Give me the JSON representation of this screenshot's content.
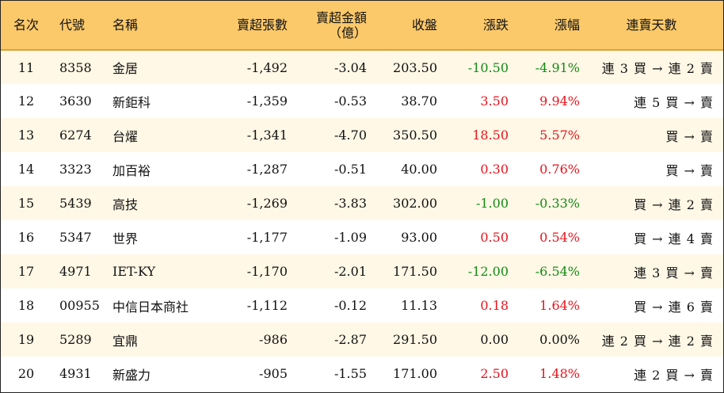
{
  "header": {
    "rank": "名次",
    "code": "代號",
    "name": "名稱",
    "lots": "賣超張數",
    "amount_line1": "賣超金額",
    "amount_line2": "（億）",
    "close": "收盤",
    "change": "漲跌",
    "pct": "漲幅",
    "days": "連賣天數"
  },
  "rows": [
    {
      "rank": "11",
      "code": "8358",
      "name": "金居",
      "lots": "-1,492",
      "amount": "-3.04",
      "close": "203.50",
      "change": "-10.50",
      "pct": "-4.91%",
      "days": "連 3 買 → 連 2 賣",
      "trend": "down"
    },
    {
      "rank": "12",
      "code": "3630",
      "name": "新鉅科",
      "lots": "-1,359",
      "amount": "-0.53",
      "close": "38.70",
      "change": "3.50",
      "pct": "9.94%",
      "days": "連 5 買 → 賣",
      "trend": "up"
    },
    {
      "rank": "13",
      "code": "6274",
      "name": "台燿",
      "lots": "-1,341",
      "amount": "-4.70",
      "close": "350.50",
      "change": "18.50",
      "pct": "5.57%",
      "days": "買 → 賣",
      "trend": "up"
    },
    {
      "rank": "14",
      "code": "3323",
      "name": "加百裕",
      "lots": "-1,287",
      "amount": "-0.51",
      "close": "40.00",
      "change": "0.30",
      "pct": "0.76%",
      "days": "買 → 賣",
      "trend": "up"
    },
    {
      "rank": "15",
      "code": "5439",
      "name": "高技",
      "lots": "-1,269",
      "amount": "-3.83",
      "close": "302.00",
      "change": "-1.00",
      "pct": "-0.33%",
      "days": "買 → 連 2 賣",
      "trend": "down"
    },
    {
      "rank": "16",
      "code": "5347",
      "name": "世界",
      "lots": "-1,177",
      "amount": "-1.09",
      "close": "93.00",
      "change": "0.50",
      "pct": "0.54%",
      "days": "買 → 連 4 賣",
      "trend": "up"
    },
    {
      "rank": "17",
      "code": "4971",
      "name": "IET-KY",
      "lots": "-1,170",
      "amount": "-2.01",
      "close": "171.50",
      "change": "-12.00",
      "pct": "-6.54%",
      "days": "連 3 買 → 賣",
      "trend": "down"
    },
    {
      "rank": "18",
      "code": "00955",
      "name": "中信日本商社",
      "lots": "-1,112",
      "amount": "-0.12",
      "close": "11.13",
      "change": "0.18",
      "pct": "1.64%",
      "days": "買 → 連 6 賣",
      "trend": "up"
    },
    {
      "rank": "19",
      "code": "5289",
      "name": "宜鼎",
      "lots": "-986",
      "amount": "-2.87",
      "close": "291.50",
      "change": "0.00",
      "pct": "0.00%",
      "days": "連 2 買 → 連 2 賣",
      "trend": "flat"
    },
    {
      "rank": "20",
      "code": "4931",
      "name": "新盛力",
      "lots": "-905",
      "amount": "-1.55",
      "close": "171.00",
      "change": "2.50",
      "pct": "1.48%",
      "days": "連 2 買 → 賣",
      "trend": "up"
    }
  ],
  "colors": {
    "up": "#e8131c",
    "down": "#148a14",
    "header_bg": "#fcc96a",
    "row_alt_bg": "#fff8e6"
  }
}
